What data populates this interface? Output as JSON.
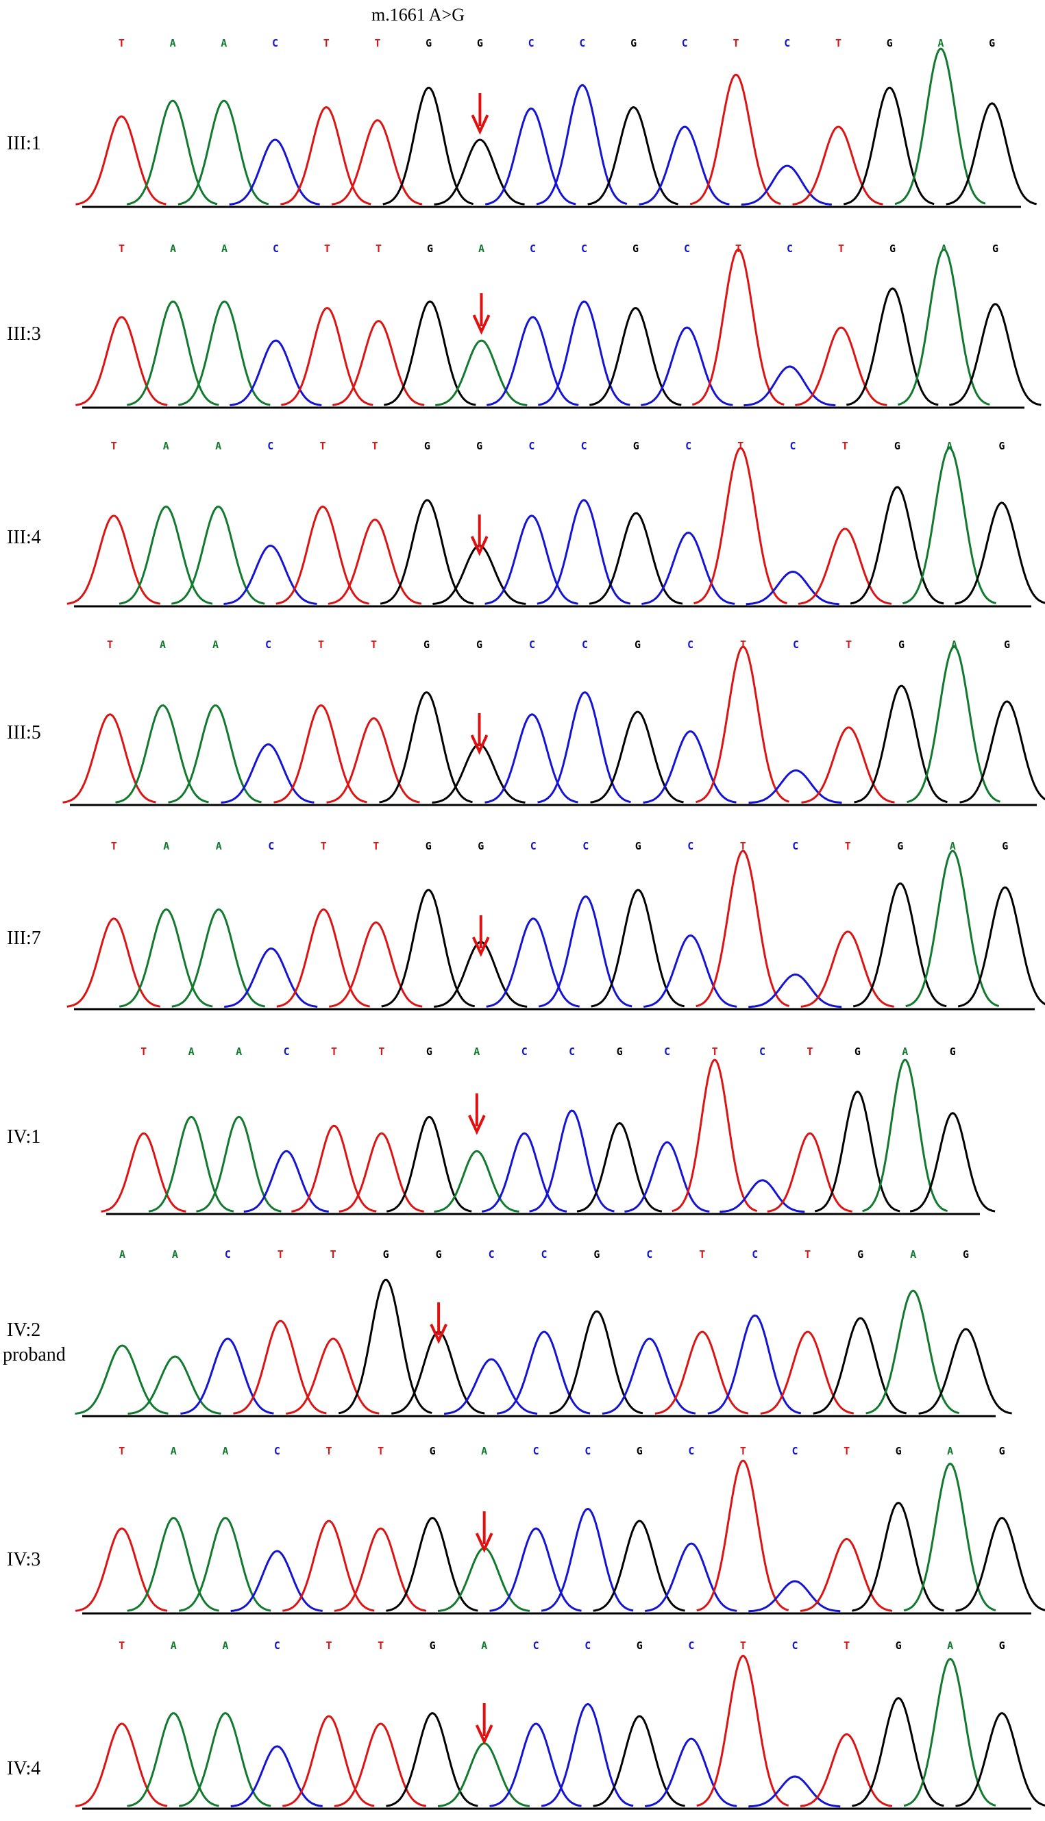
{
  "title": "m.1661 A>G",
  "colors": {
    "A": "#127a2e",
    "C": "#1414d2",
    "G": "#000000",
    "T": "#dc1414",
    "arrow": "#e01010",
    "baseline": "#000000"
  },
  "mutation_index": 7,
  "panels": [
    {
      "label": "III:1",
      "sublabel": "",
      "bases": "TAACTTGGCCGCTCTGAG",
      "peak_heights": [
        0.68,
        0.8,
        0.8,
        0.5,
        0.75,
        0.65,
        0.9,
        0.5,
        0.74,
        0.92,
        0.75,
        0.6,
        1.0,
        0.3,
        0.6,
        0.9,
        1.2,
        0.78
      ]
    },
    {
      "label": "III:3",
      "sublabel": "",
      "bases": "TAACTTGACCGCTCTGAG",
      "peak_heights": [
        0.68,
        0.8,
        0.8,
        0.5,
        0.75,
        0.65,
        0.8,
        0.5,
        0.68,
        0.8,
        0.75,
        0.6,
        1.2,
        0.3,
        0.6,
        0.9,
        1.2,
        0.78
      ]
    },
    {
      "label": "III:4",
      "sublabel": "",
      "bases": "TAACTTGGCCGCTCTGAG",
      "peak_heights": [
        0.68,
        0.75,
        0.75,
        0.45,
        0.75,
        0.65,
        0.8,
        0.45,
        0.68,
        0.8,
        0.7,
        0.55,
        1.2,
        0.25,
        0.58,
        0.9,
        1.2,
        0.78
      ]
    },
    {
      "label": "III:5",
      "sublabel": "",
      "bases": "TAACTTGGCCGCTCTGAG",
      "peak_heights": [
        0.68,
        0.75,
        0.75,
        0.45,
        0.75,
        0.65,
        0.85,
        0.45,
        0.68,
        0.85,
        0.7,
        0.55,
        1.2,
        0.25,
        0.58,
        0.9,
        1.2,
        0.78
      ]
    },
    {
      "label": "III:7",
      "sublabel": "",
      "bases": "TAACTTGGCCGCTCTGAG",
      "peak_heights": [
        0.68,
        0.75,
        0.75,
        0.45,
        0.75,
        0.65,
        0.9,
        0.5,
        0.68,
        0.85,
        0.9,
        0.55,
        1.2,
        0.25,
        0.58,
        0.95,
        1.2,
        0.92
      ]
    },
    {
      "label": "IV:1",
      "sublabel": "",
      "bases": "TAACTTGACCGCTCTGAG",
      "peak_heights": [
        0.62,
        0.75,
        0.75,
        0.48,
        0.68,
        0.62,
        0.75,
        0.48,
        0.62,
        0.8,
        0.7,
        0.55,
        1.2,
        0.25,
        0.62,
        0.95,
        1.2,
        0.78
      ]
    },
    {
      "label": "IV:2",
      "sublabel": "proband",
      "bases": "AACTTGGCCGCTCTGAG",
      "peak_heights": [
        0.5,
        0.42,
        0.55,
        0.68,
        0.55,
        0.98,
        0.6,
        0.4,
        0.6,
        0.75,
        0.55,
        0.6,
        0.72,
        0.6,
        0.7,
        0.9,
        0.62
      ]
    },
    {
      "label": "IV:3",
      "sublabel": "",
      "bases": "TAACTTGACCGCTCTGAG",
      "peak_heights": [
        0.55,
        0.62,
        0.62,
        0.4,
        0.6,
        0.55,
        0.62,
        0.42,
        0.55,
        0.68,
        0.6,
        0.45,
        1.0,
        0.2,
        0.48,
        0.72,
        0.98,
        0.62
      ]
    },
    {
      "label": "IV:4",
      "sublabel": "",
      "bases": "TAACTTGACCGCTCTGAG",
      "peak_heights": [
        0.55,
        0.62,
        0.62,
        0.4,
        0.6,
        0.55,
        0.62,
        0.42,
        0.55,
        0.68,
        0.6,
        0.45,
        1.0,
        0.2,
        0.48,
        0.72,
        0.98,
        0.62
      ]
    }
  ]
}
